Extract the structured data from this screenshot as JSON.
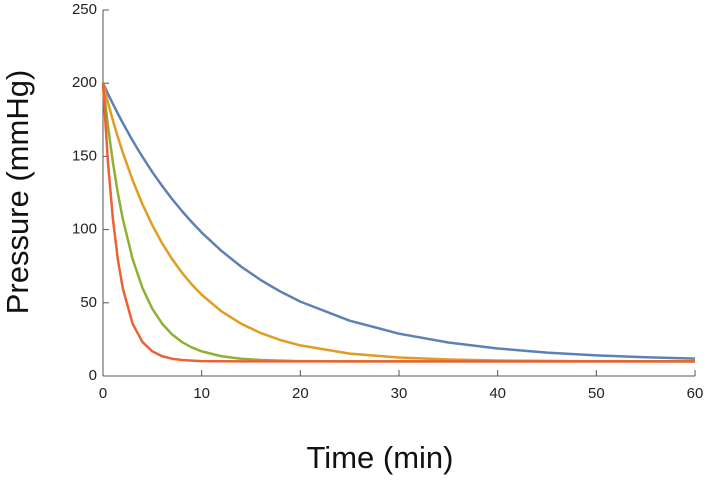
{
  "chart_data": {
    "type": "line",
    "x_label": "Time (min)",
    "y_label": "Pressure (mmHg)",
    "x": [
      0,
      0.5,
      1,
      1.5,
      2,
      3,
      4,
      5,
      6,
      7,
      8,
      9,
      10,
      12,
      14,
      16,
      18,
      20,
      25,
      30,
      35,
      40,
      45,
      50,
      55,
      60
    ],
    "series": [
      {
        "color": "#5e81b5",
        "values": [
          200,
          192.8,
          185.9,
          179.3,
          172.9,
          160.8,
          149.7,
          139.3,
          129.8,
          120.9,
          112.7,
          105.1,
          98.0,
          85.5,
          74.7,
          65.5,
          57.6,
          50.8,
          37.8,
          28.9,
          22.9,
          18.8,
          16.0,
          14.1,
          12.8,
          11.9
        ]
      },
      {
        "color": "#e19c24",
        "values": [
          200,
          186.9,
          174.7,
          163.3,
          152.8,
          133.8,
          117.3,
          103.0,
          90.6,
          79.9,
          70.6,
          62.5,
          55.5,
          44.2,
          35.7,
          29.3,
          24.5,
          20.9,
          15.3,
          12.6,
          11.3,
          10.6,
          10.3,
          10.1,
          10.1,
          10.0
        ]
      },
      {
        "color": "#8fb131",
        "values": [
          200,
          170.8,
          146.1,
          125.2,
          107.5,
          79.9,
          60.1,
          45.9,
          35.7,
          28.4,
          23.2,
          19.5,
          16.8,
          13.5,
          11.8,
          10.9,
          10.5,
          10.2,
          10.0,
          10.0,
          10.0,
          10.0,
          10.0,
          10.0,
          10.0,
          10.0
        ]
      },
      {
        "color": "#eb6235",
        "values": [
          200,
          146.1,
          107.5,
          79.9,
          60.1,
          35.7,
          23.2,
          16.8,
          13.5,
          11.8,
          10.9,
          10.5,
          10.2,
          10.1,
          10.0,
          10.0,
          10.0,
          10.0,
          10.0,
          10.0,
          10.0,
          10.0,
          10.0,
          10.0,
          10.0,
          10.0
        ]
      }
    ],
    "xlim": [
      0,
      60
    ],
    "xticks": [
      0,
      10,
      20,
      30,
      40,
      50,
      60
    ],
    "ylim": [
      0,
      250
    ],
    "yticks": [
      0,
      50,
      100,
      150,
      200,
      250
    ]
  }
}
